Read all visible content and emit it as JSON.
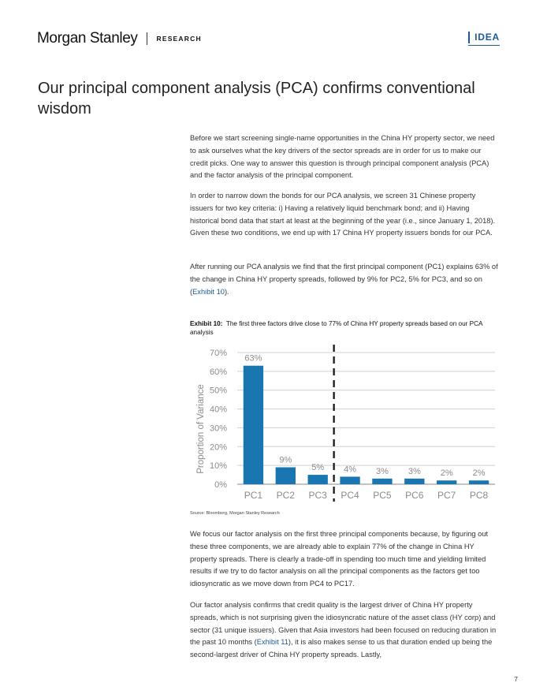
{
  "header": {
    "brand": "Morgan Stanley",
    "section": "RESEARCH",
    "badge": "IDEA"
  },
  "title": "Our principal component analysis (PCA) confirms conventional wisdom",
  "paragraphs": {
    "p1": "Before we start screening single-name opportunities in the China HY property sector, we need to ask ourselves what the key drivers of the sector spreads are in order for us to make our credit picks. One way to answer this question is through principal component analysis (PCA) and the factor analysis of the principal component.",
    "p2": "In order to narrow down the bonds for our PCA analysis, we screen 31 Chinese property issuers for two key criteria: i) Having a relatively liquid benchmark bond; and ii) Having historical bond data that start at least at the beginning of the year (i.e., since January 1, 2018). Given these two conditions, we end up with 17 China HY property issuers bonds for our PCA.",
    "p3_before": "After running our PCA analysis we find that the first principal component (PC1) explains 63% of the change in China HY property spreads, followed by 9% for PC2, 5% for PC3, and so on (",
    "p3_link": "Exhibit 10",
    "p3_after": ").",
    "p4": "We focus our factor analysis on the first three principal components because, by figuring out these three components, we are already able to explain 77% of the change in China HY property spreads. There is clearly a trade-off in spending too much time and yielding limited results if we try to do factor analysis on all the principal components as the factors get too idiosyncratic as we move down from PC4 to PC17.",
    "p5_before": "Our factor analysis confirms that credit quality is the largest driver of China HY property spreads, which is not surprising given the idiosyncratic nature of the asset class (HY corp) and sector (31 unique issuers). Given that Asia investors had been focused on reducing duration in the past 10 months (",
    "p5_link": "Exhibit 11",
    "p5_after": "), it is also makes sense to us that duration ended up being the second-largest driver of China HY property spreads. Lastly,"
  },
  "exhibit": {
    "label": "Exhibit 10:",
    "caption": "The first three factors drive close to 77% of China HY property spreads based on our PCA analysis",
    "source": "Source: Bloomberg, Morgan Stanley Research"
  },
  "chart_data": {
    "type": "bar",
    "categories": [
      "PC1",
      "PC2",
      "PC3",
      "PC4",
      "PC5",
      "PC6",
      "PC7",
      "PC8"
    ],
    "values": [
      63,
      9,
      5,
      4,
      3,
      3,
      2,
      2
    ],
    "data_labels": [
      "63%",
      "9%",
      "5%",
      "4%",
      "3%",
      "3%",
      "2%",
      "2%"
    ],
    "ylabel": "Proportion of Variance",
    "yticks": [
      0,
      10,
      20,
      30,
      40,
      50,
      60,
      70
    ],
    "ytick_labels": [
      "0%",
      "10%",
      "20%",
      "30%",
      "40%",
      "50%",
      "60%",
      "70%"
    ],
    "ylim": [
      0,
      70
    ],
    "grid": true,
    "divider_after": "PC3",
    "bar_color": "#1a76b0"
  },
  "page_number": "7"
}
